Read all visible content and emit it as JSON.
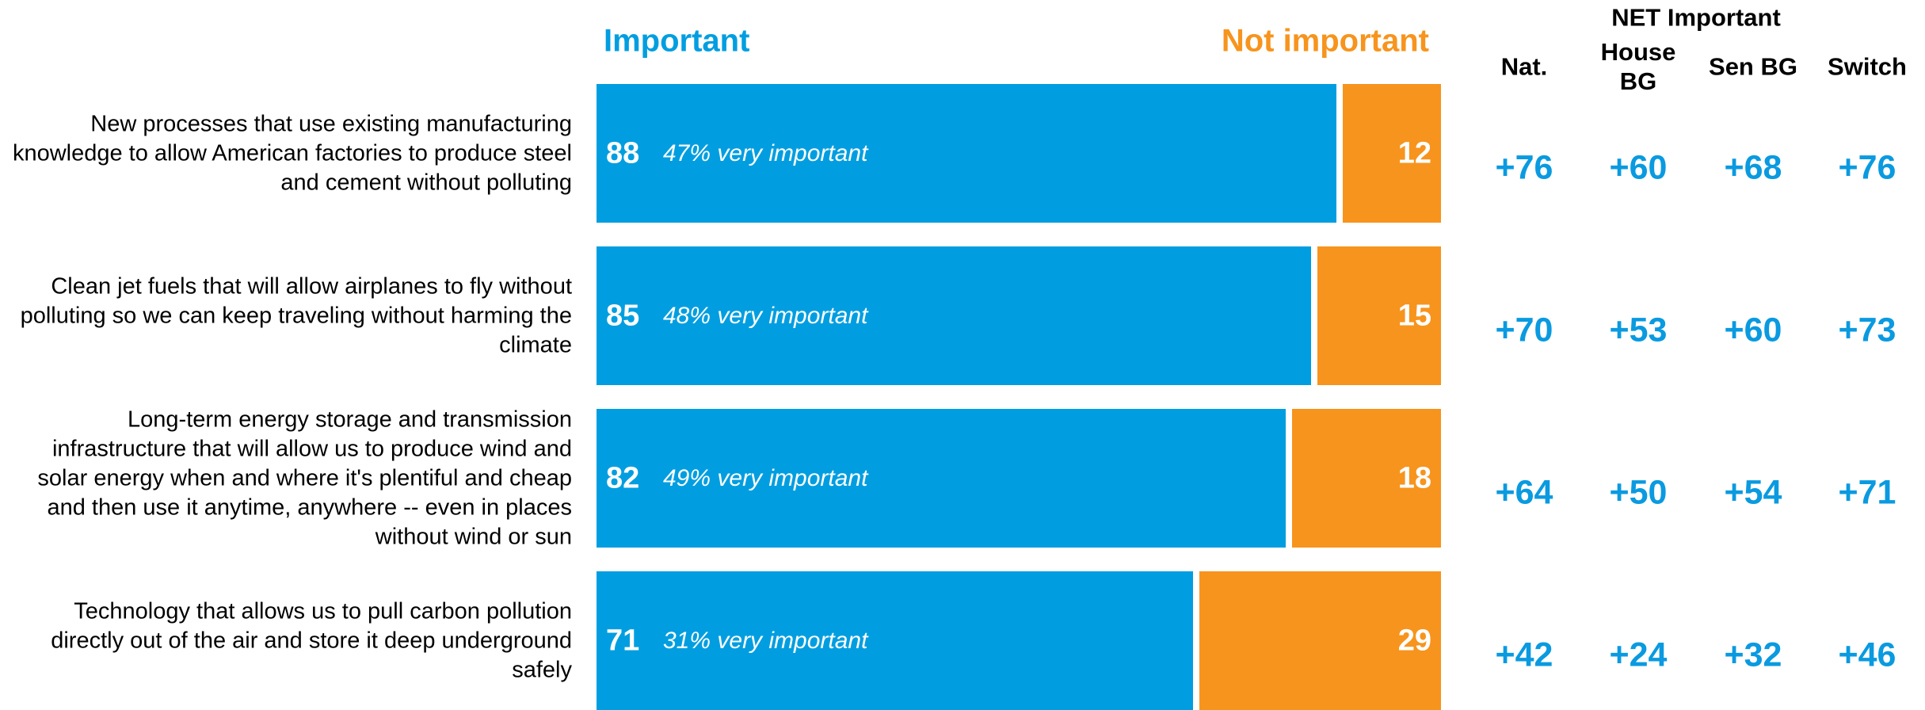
{
  "chart_data": {
    "type": "bar",
    "orientation": "horizontal",
    "stacked": true,
    "categories": [
      "New processes that use existing manufacturing knowledge to allow American factories to produce steel and cement without polluting",
      "Clean jet fuels that will allow airplanes to fly without polluting so we can keep traveling without harming the climate",
      "Long-term energy storage and transmission infrastructure that will allow us to produce wind and solar energy when and where it's plentiful and cheap and then use it anytime, anywhere -- even in places without wind or sun",
      "Technology that allows us to pull carbon pollution directly out of the air and store it deep underground safely"
    ],
    "series": [
      {
        "name": "Important",
        "color": "#009ee0",
        "values": [
          88,
          85,
          82,
          71
        ]
      },
      {
        "name": "Not important",
        "color": "#f7941d",
        "values": [
          12,
          15,
          18,
          29
        ]
      }
    ],
    "annotations": [
      "47% very important",
      "48% very important",
      "49% very important",
      "31% very important"
    ],
    "xlim": [
      0,
      100
    ],
    "net_table": {
      "title": "NET Important",
      "columns": [
        "Nat.",
        "House BG",
        "Sen BG",
        "Switch"
      ],
      "rows": [
        [
          "+76",
          "+60",
          "+68",
          "+76"
        ],
        [
          "+70",
          "+53",
          "+60",
          "+73"
        ],
        [
          "+64",
          "+50",
          "+54",
          "+71"
        ],
        [
          "+42",
          "+24",
          "+32",
          "+46"
        ]
      ]
    }
  }
}
